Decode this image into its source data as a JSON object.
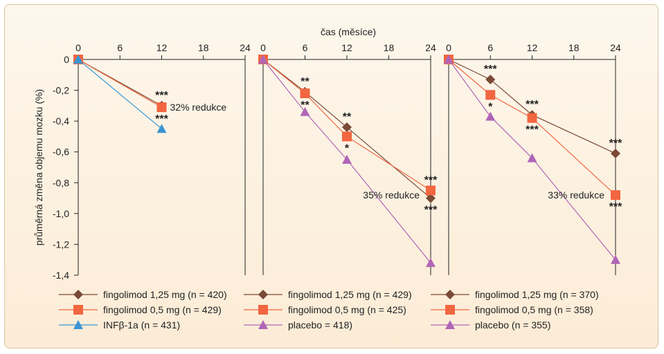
{
  "chart_data": {
    "type": "line",
    "xlabel": "čas (měsíce)",
    "ylabel": "průměrná změna objemu mozku (%)",
    "ylim": [
      -1.4,
      0
    ],
    "yticks": [
      "0",
      "-0,2",
      "-0,4",
      "-0,6",
      "-0,8",
      "-1,0",
      "-1,2",
      "-1,4"
    ],
    "yticks_values": [
      0,
      -0.2,
      -0.4,
      -0.6,
      -0.8,
      -1.0,
      -1.2,
      -1.4
    ],
    "colors": {
      "fingolimod_125": "#7a4a36",
      "fingolimod_05": "#f26640",
      "infb": "#3a95d2",
      "placebo": "#b065b7"
    },
    "panels": [
      {
        "xlim": [
          0,
          24
        ],
        "xticks": [
          "0",
          "6",
          "12",
          "18",
          "24"
        ],
        "xticks_values": [
          0,
          6,
          12,
          18,
          24
        ],
        "series": [
          {
            "name": "fingolimod 1,25 mg (n = 420)",
            "marker": "diamond",
            "color": "#7a4a36",
            "x": [
              0,
              12
            ],
            "y": [
              0,
              -0.3
            ]
          },
          {
            "name": "fingolimod 0,5 mg (n = 429)",
            "marker": "square",
            "color": "#f26640",
            "x": [
              0,
              12
            ],
            "y": [
              0,
              -0.31
            ]
          },
          {
            "name": "INFβ-1a (n = 431)",
            "marker": "triangle",
            "color": "#3a95d2",
            "x": [
              0,
              12
            ],
            "y": [
              0,
              -0.45
            ]
          }
        ],
        "stars": [
          {
            "text": "***",
            "x": 12,
            "y": -0.3,
            "pos": "above"
          },
          {
            "text": "***",
            "x": 12,
            "y": -0.31,
            "pos": "below"
          }
        ],
        "annotation": {
          "text": "32% redukce",
          "x": 12,
          "y": -0.31,
          "pos": "right"
        }
      },
      {
        "xlim": [
          0,
          24
        ],
        "xticks": [
          "0",
          "6",
          "12",
          "18",
          "24"
        ],
        "xticks_values": [
          0,
          6,
          12,
          18,
          24
        ],
        "series": [
          {
            "name": "fingolimod 1,25 mg (n = 429)",
            "marker": "diamond",
            "color": "#7a4a36",
            "x": [
              0,
              6,
              12,
              24
            ],
            "y": [
              0,
              -0.21,
              -0.44,
              -0.9
            ]
          },
          {
            "name": "fingolimod 0,5 mg (n = 425)",
            "marker": "square",
            "color": "#f26640",
            "x": [
              0,
              6,
              12,
              24
            ],
            "y": [
              0,
              -0.22,
              -0.5,
              -0.85
            ]
          },
          {
            "name": "placebo = 418)",
            "marker": "triangle",
            "color": "#b065b7",
            "x": [
              0,
              6,
              12,
              24
            ],
            "y": [
              0,
              -0.34,
              -0.65,
              -1.32
            ]
          }
        ],
        "stars": [
          {
            "text": "**",
            "x": 6,
            "y": -0.21,
            "pos": "above"
          },
          {
            "text": "**",
            "x": 6,
            "y": -0.22,
            "pos": "below"
          },
          {
            "text": "**",
            "x": 12,
            "y": -0.44,
            "pos": "above"
          },
          {
            "text": "*",
            "x": 12,
            "y": -0.5,
            "pos": "below"
          },
          {
            "text": "***",
            "x": 24,
            "y": -0.85,
            "pos": "above"
          },
          {
            "text": "***",
            "x": 24,
            "y": -0.9,
            "pos": "below"
          }
        ],
        "annotation": {
          "text": "35% redukce",
          "x": 24,
          "y": -0.88,
          "pos": "left"
        }
      },
      {
        "xlim": [
          0,
          24
        ],
        "xticks": [
          "0",
          "6",
          "12",
          "18",
          "24"
        ],
        "xticks_values": [
          0,
          6,
          12,
          18,
          24
        ],
        "series": [
          {
            "name": "fingolimod 1,25 mg (n = 370)",
            "marker": "diamond",
            "color": "#7a4a36",
            "x": [
              0,
              6,
              12,
              24
            ],
            "y": [
              0,
              -0.13,
              -0.36,
              -0.61
            ]
          },
          {
            "name": "fingolimod 0,5 mg (n = 358)",
            "marker": "square",
            "color": "#f26640",
            "x": [
              0,
              6,
              12,
              24
            ],
            "y": [
              0,
              -0.23,
              -0.38,
              -0.88
            ]
          },
          {
            "name": "placebo (n = 355)",
            "marker": "triangle",
            "color": "#b065b7",
            "x": [
              0,
              6,
              12,
              24
            ],
            "y": [
              0,
              -0.37,
              -0.64,
              -1.3
            ]
          }
        ],
        "stars": [
          {
            "text": "***",
            "x": 6,
            "y": -0.13,
            "pos": "above"
          },
          {
            "text": "*",
            "x": 6,
            "y": -0.23,
            "pos": "below"
          },
          {
            "text": "***",
            "x": 12,
            "y": -0.36,
            "pos": "above"
          },
          {
            "text": "***",
            "x": 12,
            "y": -0.38,
            "pos": "below"
          },
          {
            "text": "***",
            "x": 24,
            "y": -0.61,
            "pos": "above"
          },
          {
            "text": "***",
            "x": 24,
            "y": -0.88,
            "pos": "below"
          }
        ],
        "annotation": {
          "text": "33% redukce",
          "x": 24,
          "y": -0.88,
          "pos": "left"
        }
      }
    ]
  }
}
